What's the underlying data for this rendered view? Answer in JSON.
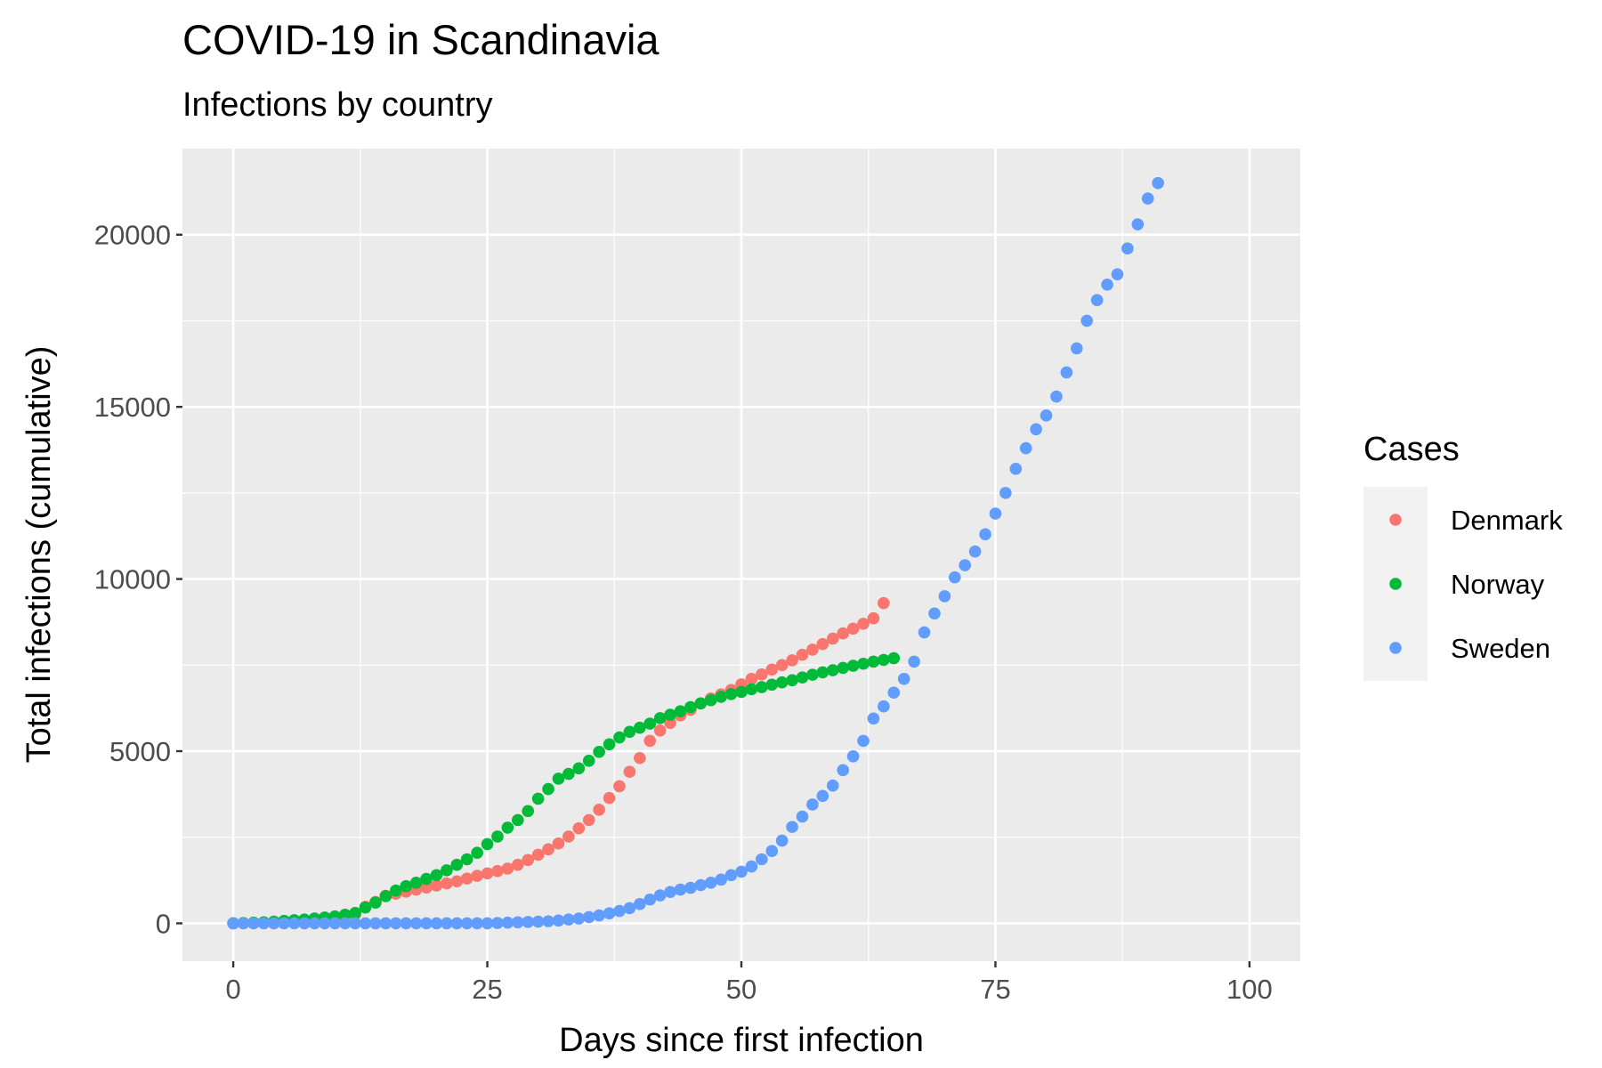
{
  "chart_data": {
    "type": "scatter",
    "title": "COVID-19 in Scandinavia",
    "subtitle": "Infections by country",
    "xlabel": "Days since first infection",
    "ylabel": "Total infections (cumulative)",
    "xlim": [
      -5,
      105
    ],
    "ylim": [
      -1100,
      22500
    ],
    "x_ticks": [
      0,
      25,
      50,
      75,
      100
    ],
    "y_ticks": [
      0,
      5000,
      10000,
      15000,
      20000
    ],
    "grid": true,
    "panel_background": "#ebebeb",
    "legend": {
      "title": "Cases",
      "position": "right"
    },
    "series": [
      {
        "name": "Denmark",
        "color": "#F8766D",
        "x": [
          0,
          1,
          2,
          3,
          4,
          5,
          6,
          7,
          8,
          9,
          10,
          11,
          12,
          13,
          14,
          15,
          16,
          17,
          18,
          19,
          20,
          21,
          22,
          23,
          24,
          25,
          26,
          27,
          28,
          29,
          30,
          31,
          32,
          33,
          34,
          35,
          36,
          37,
          38,
          39,
          40,
          41,
          42,
          43,
          44,
          45,
          46,
          47,
          48,
          49,
          50,
          51,
          52,
          53,
          54,
          55,
          56,
          57,
          58,
          59,
          60,
          61,
          62,
          63,
          64
        ],
        "y": [
          1,
          3,
          4,
          6,
          10,
          20,
          35,
          60,
          90,
          120,
          160,
          200,
          260,
          480,
          620,
          800,
          860,
          920,
          980,
          1040,
          1100,
          1160,
          1220,
          1300,
          1380,
          1450,
          1520,
          1590,
          1700,
          1840,
          1990,
          2150,
          2320,
          2520,
          2760,
          3000,
          3300,
          3640,
          3980,
          4400,
          4800,
          5300,
          5600,
          5820,
          6040,
          6200,
          6380,
          6530,
          6650,
          6780,
          6940,
          7100,
          7230,
          7370,
          7500,
          7640,
          7800,
          7950,
          8110,
          8270,
          8420,
          8560,
          8700,
          8860,
          9300
        ]
      },
      {
        "name": "Norway",
        "color": "#00BA38",
        "x": [
          0,
          1,
          2,
          3,
          4,
          5,
          6,
          7,
          8,
          9,
          10,
          11,
          12,
          13,
          14,
          15,
          16,
          17,
          18,
          19,
          20,
          21,
          22,
          23,
          24,
          25,
          26,
          27,
          28,
          29,
          30,
          31,
          32,
          33,
          34,
          35,
          36,
          37,
          38,
          39,
          40,
          41,
          42,
          43,
          44,
          45,
          46,
          47,
          48,
          49,
          50,
          51,
          52,
          53,
          54,
          55,
          56,
          57,
          58,
          59,
          60,
          61,
          62,
          63,
          64,
          65
        ],
        "y": [
          1,
          10,
          20,
          30,
          50,
          70,
          90,
          110,
          140,
          170,
          200,
          250,
          300,
          460,
          600,
          790,
          950,
          1080,
          1180,
          1290,
          1400,
          1540,
          1700,
          1860,
          2050,
          2300,
          2520,
          2780,
          3000,
          3260,
          3620,
          3900,
          4200,
          4340,
          4500,
          4720,
          4980,
          5200,
          5400,
          5560,
          5680,
          5800,
          5960,
          6060,
          6160,
          6280,
          6390,
          6480,
          6580,
          6660,
          6720,
          6800,
          6860,
          6930,
          7000,
          7060,
          7140,
          7220,
          7290,
          7350,
          7420,
          7480,
          7540,
          7600,
          7650,
          7700
        ]
      },
      {
        "name": "Sweden",
        "color": "#619CFF",
        "x": [
          0,
          1,
          2,
          3,
          4,
          5,
          6,
          7,
          8,
          9,
          10,
          11,
          12,
          13,
          14,
          15,
          16,
          17,
          18,
          19,
          20,
          21,
          22,
          23,
          24,
          25,
          26,
          27,
          28,
          29,
          30,
          31,
          32,
          33,
          34,
          35,
          36,
          37,
          38,
          39,
          40,
          41,
          42,
          43,
          44,
          45,
          46,
          47,
          48,
          49,
          50,
          51,
          52,
          53,
          54,
          55,
          56,
          57,
          58,
          59,
          60,
          61,
          62,
          63,
          64,
          65,
          66,
          67,
          68,
          69,
          70,
          71,
          72,
          73,
          74,
          75,
          76,
          77,
          78,
          79,
          80,
          81,
          82,
          83,
          84,
          85,
          86,
          87,
          88,
          89,
          90,
          91
        ],
        "y": [
          1,
          1,
          1,
          1,
          1,
          1,
          1,
          1,
          1,
          1,
          1,
          1,
          1,
          1,
          1,
          1,
          1,
          1,
          1,
          1,
          1,
          1,
          1,
          1,
          1,
          1,
          10,
          20,
          30,
          40,
          50,
          60,
          80,
          110,
          140,
          180,
          230,
          290,
          360,
          440,
          560,
          690,
          810,
          910,
          980,
          1030,
          1110,
          1180,
          1270,
          1400,
          1500,
          1650,
          1860,
          2100,
          2400,
          2800,
          3100,
          3450,
          3700,
          4000,
          4450,
          4850,
          5300,
          5950,
          6300,
          6700,
          7100,
          7600,
          8450,
          9000,
          9500,
          10050,
          10400,
          10800,
          11300,
          11900,
          12500,
          13200,
          13800,
          14350,
          14750,
          15300,
          16000,
          16700,
          17500,
          18100,
          18550,
          18850,
          19600,
          20300,
          21050,
          21500
        ]
      }
    ]
  }
}
